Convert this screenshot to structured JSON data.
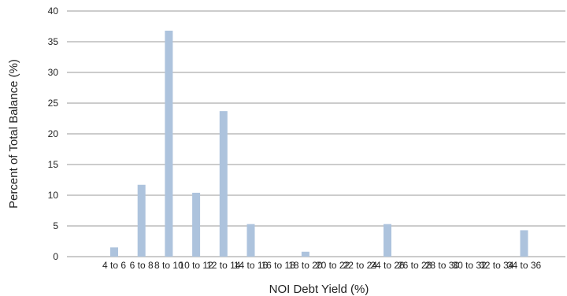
{
  "chart_data": {
    "type": "bar",
    "title": "",
    "xlabel": "NOI Debt Yield (%)",
    "ylabel": "Percent of Total Balance (%)",
    "ylim": [
      0,
      40
    ],
    "yticks": [
      0,
      5,
      10,
      15,
      20,
      25,
      30,
      35,
      40
    ],
    "grid": true,
    "categories": [
      "4 to 6",
      "6 to 8",
      "8 to 10",
      "10 to 12",
      "12 to 14",
      "14 to 16",
      "16 to 18",
      "18 to 20",
      "20 to 22",
      "22 to 24",
      "24 to 26",
      "26 to 28",
      "28 to 30",
      "30 to 32",
      "32 to 34",
      "34 to 36"
    ],
    "values": [
      1.5,
      11.7,
      36.8,
      10.4,
      23.7,
      5.3,
      0,
      0.8,
      0,
      0,
      5.3,
      0,
      0,
      0,
      0,
      4.3
    ],
    "bar_color": "#adc3dd"
  }
}
